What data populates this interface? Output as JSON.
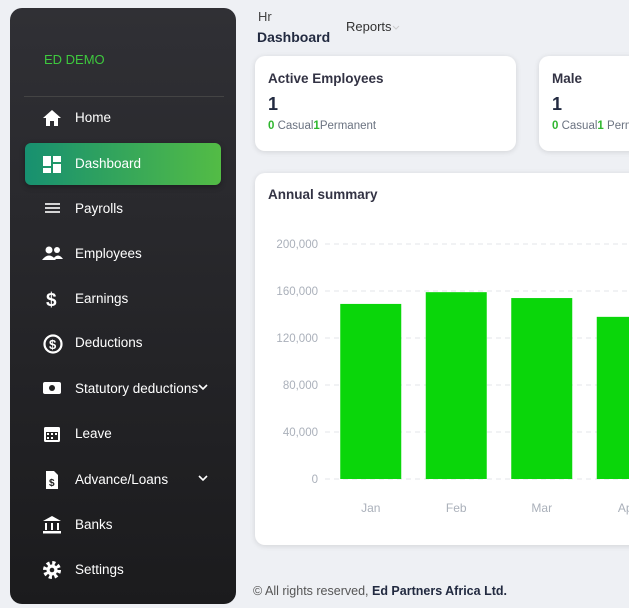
{
  "sidebar": {
    "brand": "ED DEMO",
    "menu": [
      "Home",
      "Dashboard",
      "Payrolls",
      "Employees",
      "Earnings",
      "Deductions",
      "Statutory deductions",
      "Leave",
      "Advance/Loans",
      "Banks",
      "Settings"
    ]
  },
  "header": {
    "section": "Hr",
    "page": "Dashboard",
    "reports": "Reports"
  },
  "cards": [
    {
      "title": "Active Employees",
      "count": 1,
      "casual_count": 0,
      "casual_label": "Casual",
      "permanent_count": 1,
      "permanent_label": "Permanent"
    },
    {
      "title": "Male",
      "count": 1,
      "casual_count": 0,
      "casual_label": "Casual",
      "permanent_count": 1,
      "permanent_label": "Permanent"
    }
  ],
  "chart_data": {
    "type": "bar",
    "title": "Annual summary",
    "categories": [
      "Jan",
      "Feb",
      "Mar",
      "Apr"
    ],
    "values": [
      149000,
      159000,
      154000,
      138000
    ],
    "color": "#0ad60a",
    "ylim": [
      0,
      200000
    ],
    "yticks": [
      0,
      {
        "value": 40000,
        "label": "40,000"
      },
      {
        "value": 80000,
        "label": "80,000"
      },
      {
        "value": 120000,
        "label": "120,000"
      },
      {
        "value": 160000,
        "label": "160,000"
      },
      {
        "value": 200000,
        "label": "200,000"
      }
    ],
    "grid": true
  },
  "footer": {
    "text": "© All rights reserved, ",
    "company": "Ed Partners Africa Ltd."
  }
}
